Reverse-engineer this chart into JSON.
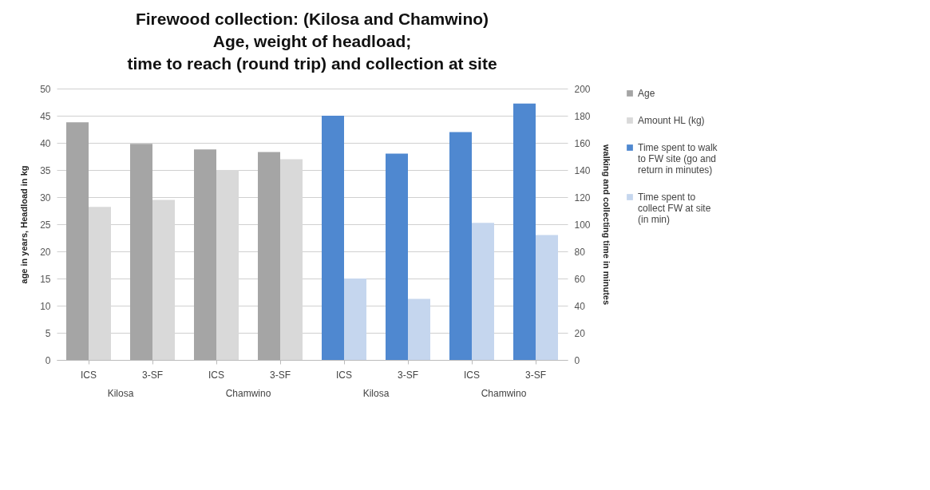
{
  "chart_data": {
    "type": "bar",
    "title": "Firewood collection: (Kilosa and Chamwino)\nAge, weight of headload;\ntime to reach (round trip) and collection at site",
    "categories": [
      "ICS",
      "3-SF",
      "ICS",
      "3-SF",
      "ICS",
      "3-SF",
      "ICS",
      "3-SF"
    ],
    "annotations": [
      "Kilosa",
      "Chamwino",
      "Kilosa",
      "Chamwino"
    ],
    "ylabel": "age in years, Headload in kg",
    "y2label": "walking and collecting time in minutes",
    "series": [
      {
        "name": "Age",
        "color": "#a5a5a5",
        "values": [
          43.8,
          39.8,
          38.8,
          38.3,
          null,
          null,
          null,
          null
        ]
      },
      {
        "name": "Amount  HL (kg)",
        "color": "#d9d9d9",
        "values": [
          28.2,
          29.5,
          35,
          37,
          null,
          null,
          null,
          null
        ]
      },
      {
        "name": "Time spent to walk to FW site (go and return in minutes)",
        "color": "#4f88d0",
        "axis": "y2",
        "values": [
          null,
          null,
          null,
          null,
          180,
          152,
          168,
          189
        ]
      },
      {
        "name": "Time spent to collect FW at site (in min)",
        "color": "#c5d6ee",
        "axis": "y2",
        "values": [
          null,
          null,
          null,
          null,
          60,
          45,
          101,
          92
        ]
      }
    ],
    "ylim": [
      0,
      50
    ],
    "yticks": [
      0,
      5,
      10,
      15,
      20,
      25,
      30,
      35,
      40,
      45,
      50
    ],
    "y2lim": [
      0,
      200
    ],
    "y2ticks": [
      0,
      20,
      40,
      60,
      80,
      100,
      120,
      140,
      160,
      180,
      200
    ],
    "grid": "y",
    "legend": "right"
  }
}
